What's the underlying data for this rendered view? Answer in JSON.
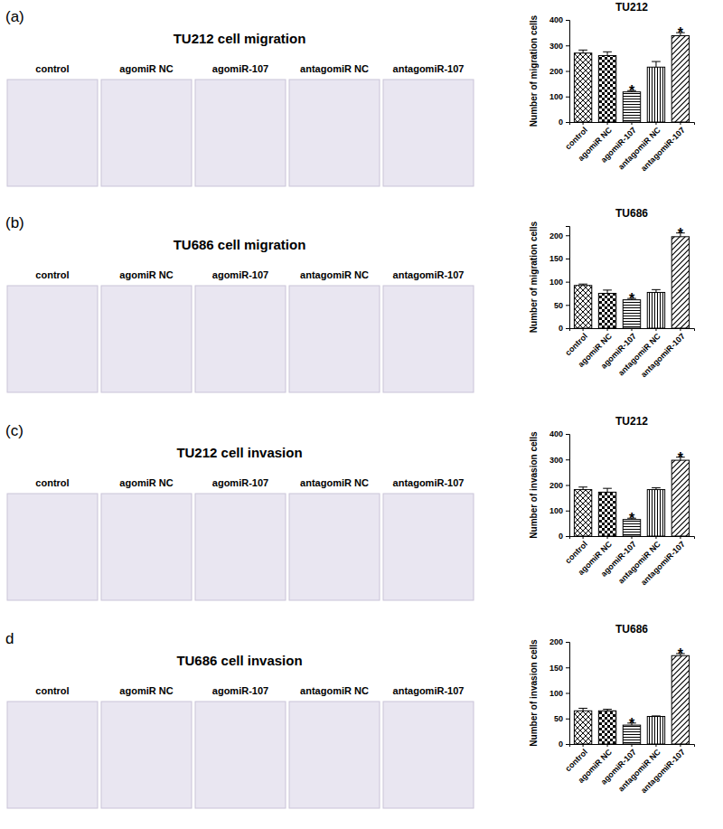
{
  "chart_data": [
    {
      "type": "bar",
      "panel_label": "(a)",
      "image_title": "TU212 cell migration",
      "title": "TU212",
      "y_label": "Number of migration cells",
      "categories": [
        "control",
        "agomiR NC",
        "agomiR-107",
        "antagomiR NC",
        "antagomiR-107"
      ],
      "values": [
        270,
        260,
        118,
        215,
        338
      ],
      "errors": [
        12,
        15,
        5,
        22,
        12
      ],
      "ylim": [
        0,
        400
      ],
      "yticks": [
        0,
        100,
        200,
        300,
        400
      ],
      "annotations": [
        {
          "category": "agomiR-107",
          "text": "*"
        },
        {
          "category": "antagomiR-107",
          "text": "*"
        }
      ]
    },
    {
      "type": "bar",
      "panel_label": "(b)",
      "image_title": "TU686 cell migration",
      "title": "TU686",
      "y_label": "Number of migration cells",
      "categories": [
        "control",
        "agomiR NC",
        "agomiR-107",
        "antagomiR NC",
        "antagomiR-107"
      ],
      "values": [
        92,
        75,
        61,
        77,
        197
      ],
      "errors": [
        3,
        7,
        3,
        6,
        8
      ],
      "ylim": [
        0,
        220
      ],
      "yticks": [
        0,
        50,
        100,
        150,
        200
      ],
      "annotations": [
        {
          "category": "agomiR-107",
          "text": "*"
        },
        {
          "category": "antagomiR-107",
          "text": "*"
        }
      ]
    },
    {
      "type": "bar",
      "panel_label": "(c)",
      "image_title": "TU212 cell invasion",
      "title": "TU212",
      "y_label": "Number of invasion cells",
      "categories": [
        "control",
        "agomiR NC",
        "agomiR-107",
        "antagomiR NC",
        "antagomiR-107"
      ],
      "values": [
        182,
        172,
        65,
        182,
        297
      ],
      "errors": [
        10,
        15,
        5,
        7,
        12
      ],
      "ylim": [
        0,
        400
      ],
      "yticks": [
        0,
        100,
        200,
        300,
        400
      ],
      "annotations": [
        {
          "category": "agomiR-107",
          "text": "*"
        },
        {
          "category": "antagomiR-107",
          "text": "*"
        }
      ]
    },
    {
      "type": "bar",
      "panel_label": "d",
      "image_title": "TU686 cell invasion",
      "title": "TU686",
      "y_label": "Number of invasion cells",
      "categories": [
        "control",
        "agomiR NC",
        "agomiR-107",
        "antagomiR NC",
        "antagomiR-107"
      ],
      "values": [
        65,
        65,
        37,
        54,
        173
      ],
      "errors": [
        5,
        3,
        4,
        1,
        4
      ],
      "ylim": [
        0,
        200
      ],
      "yticks": [
        0,
        50,
        100,
        150,
        200
      ],
      "annotations": [
        {
          "category": "agomiR-107",
          "text": "*"
        },
        {
          "category": "antagomiR-107",
          "text": "*"
        }
      ]
    }
  ]
}
